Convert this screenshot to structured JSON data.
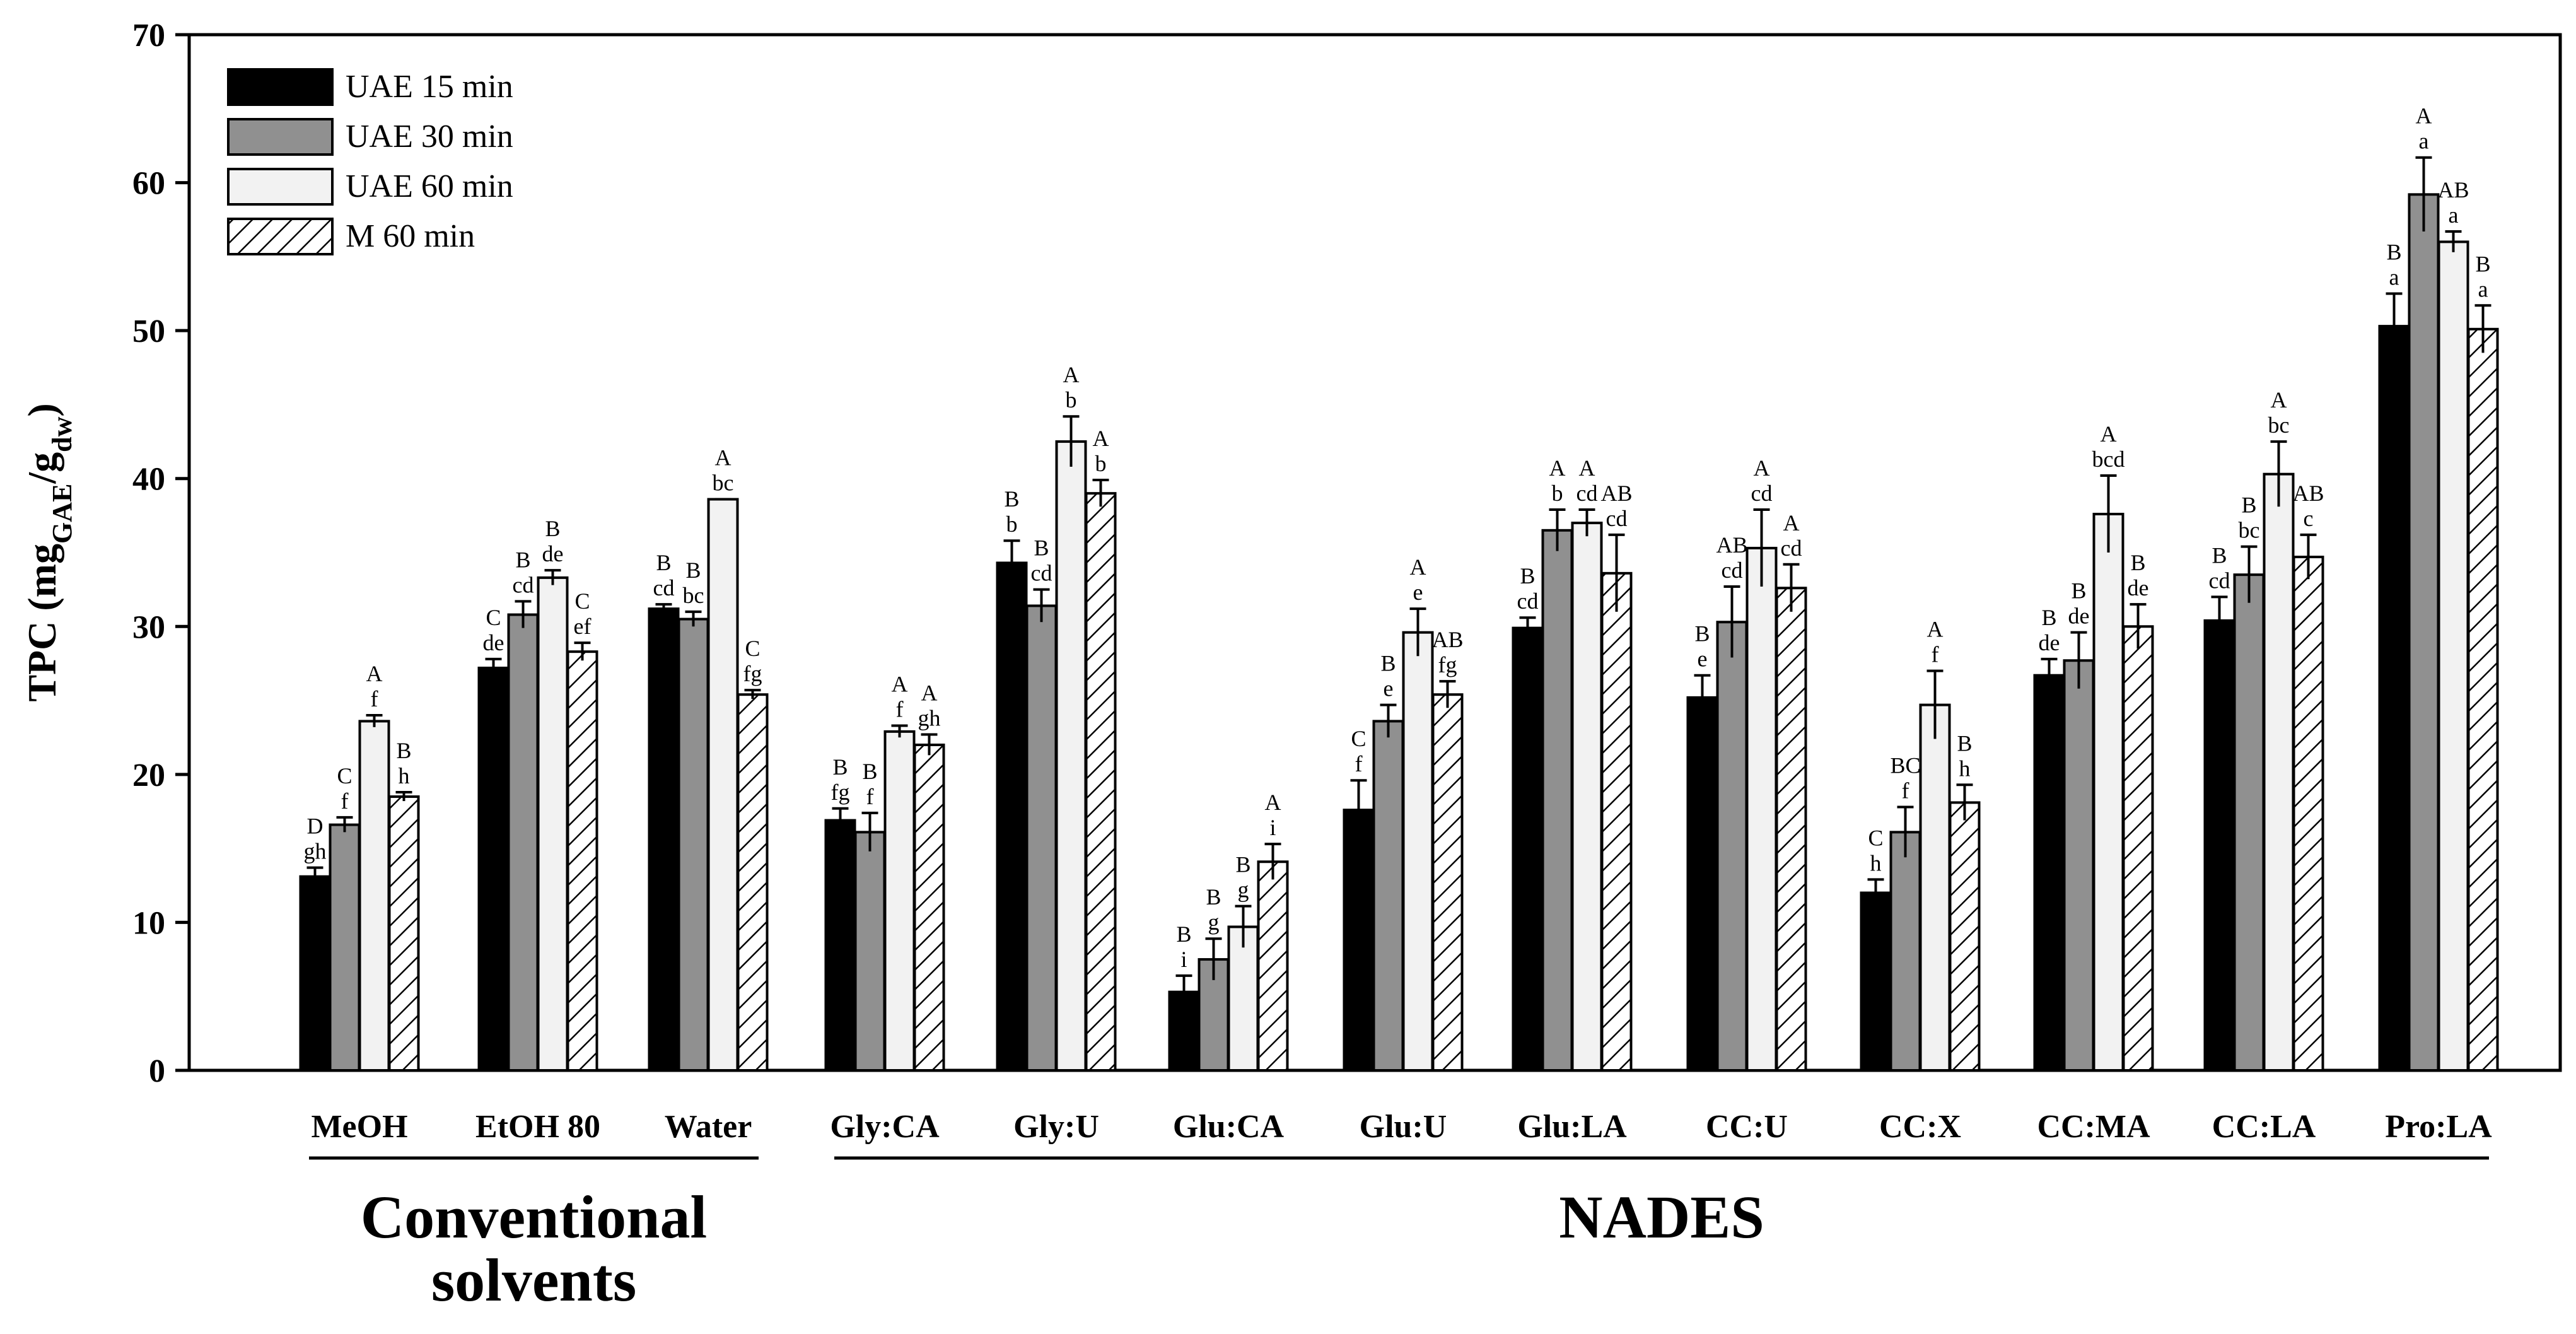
{
  "chart_data": {
    "type": "bar",
    "ylabel": {
      "main": "TPC (mg",
      "sub1": "GAE",
      "mid": "/g",
      "sub2": "dw",
      "end": ")"
    },
    "ylim": [
      0,
      70
    ],
    "yticks": [
      0,
      10,
      20,
      30,
      40,
      50,
      60,
      70
    ],
    "categories": [
      "MeOH",
      "EtOH 80",
      "Water",
      "Gly:CA",
      "Gly:U",
      "Glu:CA",
      "Glu:U",
      "Glu:LA",
      "CC:U",
      "CC:X",
      "CC:MA",
      "CC:LA",
      "Pro:LA"
    ],
    "groups": [
      {
        "label_lines": [
          "Conventional",
          "solvents"
        ],
        "from": 0,
        "to": 2
      },
      {
        "label_lines": [
          "NADES"
        ],
        "from": 3,
        "to": 12
      }
    ],
    "series": [
      {
        "name": "UAE 15 min",
        "fill": "#000000",
        "pattern": "solid",
        "values": [
          13.1,
          27.2,
          31.2,
          16.9,
          34.3,
          5.3,
          17.6,
          29.9,
          25.2,
          12.0,
          26.7,
          30.4,
          50.3
        ],
        "errors": [
          0.6,
          0.6,
          0.3,
          0.8,
          1.5,
          1.1,
          2.0,
          0.7,
          1.5,
          0.9,
          1.1,
          1.6,
          2.2
        ],
        "upper": [
          "D",
          "C",
          "B",
          "B",
          "B",
          "B",
          "C",
          "B",
          "B",
          "C",
          "B",
          "B",
          "B"
        ],
        "lower": [
          "gh",
          "de",
          "cd",
          "fg",
          "b",
          "i",
          "f",
          "cd",
          "e",
          "h",
          "de",
          "cd",
          "a"
        ]
      },
      {
        "name": "UAE 30 min",
        "fill": "#909090",
        "pattern": "solid",
        "values": [
          16.6,
          30.8,
          30.5,
          16.1,
          31.4,
          7.5,
          23.6,
          36.5,
          30.3,
          16.1,
          27.7,
          33.5,
          59.2
        ],
        "errors": [
          0.5,
          0.9,
          0.5,
          1.3,
          1.1,
          1.4,
          1.1,
          1.4,
          2.4,
          1.7,
          1.9,
          1.9,
          2.5
        ],
        "upper": [
          "C",
          "B",
          "B",
          "B",
          "B",
          "B",
          "B",
          "A",
          "AB",
          "BC",
          "B",
          "B",
          "A"
        ],
        "lower": [
          "f",
          "cd",
          "bc",
          "f",
          "cd",
          "g",
          "e",
          "b",
          "cd",
          "f",
          "de",
          "bc",
          "a"
        ]
      },
      {
        "name": "UAE 60 min",
        "fill": "#f2f2f2",
        "pattern": "solid",
        "values": [
          23.6,
          33.3,
          38.6,
          22.9,
          42.5,
          9.7,
          29.6,
          37.0,
          35.3,
          24.7,
          37.6,
          40.3,
          56.0
        ],
        "errors": [
          0.4,
          0.5,
          0.0,
          0.4,
          1.7,
          1.4,
          1.6,
          0.9,
          2.6,
          2.3,
          2.6,
          2.2,
          0.7
        ],
        "upper": [
          "A",
          "B",
          "A",
          "A",
          "A",
          "B",
          "A",
          "A",
          "A",
          "A",
          "A",
          "A",
          "AB"
        ],
        "lower": [
          "f",
          "de",
          "bc",
          "f",
          "b",
          "g",
          "e",
          "cd",
          "cd",
          "f",
          "bcd",
          "bc",
          "a"
        ]
      },
      {
        "name": "M 60 min",
        "fill": "#ffffff",
        "pattern": "hatch",
        "values": [
          18.5,
          28.3,
          25.4,
          22.0,
          39.0,
          14.1,
          25.4,
          33.6,
          32.6,
          18.1,
          30.0,
          34.7,
          50.1
        ],
        "errors": [
          0.3,
          0.6,
          0.3,
          0.7,
          0.9,
          1.2,
          0.9,
          2.6,
          1.6,
          1.2,
          1.5,
          1.5,
          1.6
        ],
        "upper": [
          "B",
          "C",
          "C",
          "A",
          "A",
          "A",
          "AB",
          "AB",
          "A",
          "B",
          "B",
          "AB",
          "B"
        ],
        "lower": [
          "h",
          "ef",
          "fg",
          "gh",
          "b",
          "i",
          "fg",
          "cd",
          "cd",
          "h",
          "de",
          "c",
          "a"
        ]
      }
    ]
  }
}
